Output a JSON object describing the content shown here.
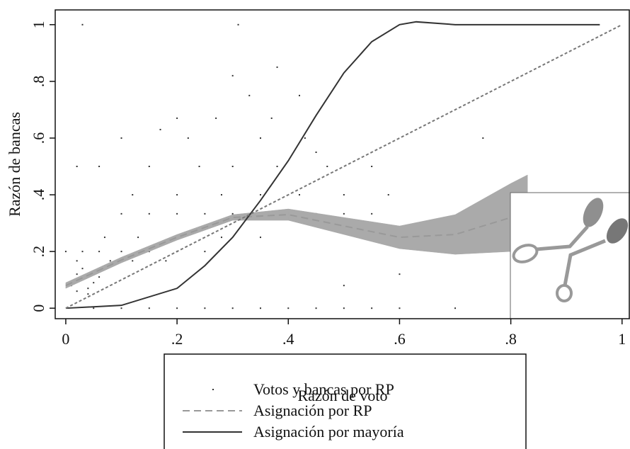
{
  "chart_data": {
    "type": "scatter",
    "x_label": "Razón de voto",
    "y_label": "Razón de bancas",
    "xlim": [
      -0.019,
      1.013
    ],
    "ylim": [
      -0.037,
      1.052
    ],
    "xticks": [
      0,
      {
        "value": 0.2,
        "label": ".2"
      },
      {
        "value": 0.4,
        "label": ".4"
      },
      {
        "value": 0.6,
        "label": ".6"
      },
      {
        "value": 0.8,
        "label": ".8"
      },
      1
    ],
    "yticks": [
      0,
      {
        "value": 0.2,
        "label": ".2"
      },
      {
        "value": 0.4,
        "label": ".4"
      },
      {
        "value": 0.6,
        "label": ".6"
      },
      {
        "value": 0.8,
        "label": ".8"
      },
      1
    ],
    "legend": "bottom",
    "series": [
      {
        "name": "Votos y bancas por RP",
        "type": "scatter",
        "color": "#333333",
        "x": [
          0.05,
          0.1,
          0.15,
          0.2,
          0.25,
          0.3,
          0.35,
          0.4,
          0.45,
          0.5,
          0.55,
          0.6,
          0.7,
          0.8,
          0.01,
          0.02,
          0.03,
          0.04,
          0.05,
          0.02,
          0.04,
          0.06,
          0.03,
          0.0,
          0.03,
          0.06,
          0.1,
          0.15,
          0.2,
          0.25,
          0.02,
          0.08,
          0.12,
          0.18,
          0.07,
          0.13,
          0.2,
          0.28,
          0.35,
          0.1,
          0.15,
          0.2,
          0.25,
          0.3,
          0.4,
          0.45,
          0.5,
          0.55,
          0.12,
          0.2,
          0.28,
          0.35,
          0.42,
          0.5,
          0.58,
          0.02,
          0.06,
          0.15,
          0.24,
          0.3,
          0.38,
          0.47,
          0.55,
          0.1,
          0.22,
          0.35,
          0.43,
          0.2,
          0.27,
          0.37,
          0.33,
          0.42,
          0.03,
          0.31,
          0.17,
          0.3,
          0.38,
          0.45,
          0.6,
          0.5,
          0.75
        ],
        "values": [
          0,
          0,
          0,
          0,
          0,
          0,
          0,
          0,
          0,
          0,
          0,
          0,
          0,
          0,
          0.08,
          0.06,
          0.1,
          0.07,
          0.09,
          0.12,
          0.05,
          0.11,
          0.14,
          0.2,
          0.2,
          0.2,
          0.2,
          0.2,
          0.2,
          0.2,
          0.167,
          0.167,
          0.167,
          0.167,
          0.25,
          0.25,
          0.25,
          0.25,
          0.25,
          0.333,
          0.333,
          0.333,
          0.333,
          0.333,
          0.333,
          0.333,
          0.333,
          0.333,
          0.4,
          0.4,
          0.4,
          0.4,
          0.4,
          0.4,
          0.4,
          0.5,
          0.5,
          0.5,
          0.5,
          0.5,
          0.5,
          0.5,
          0.5,
          0.6,
          0.6,
          0.6,
          0.6,
          0.67,
          0.67,
          0.67,
          0.75,
          0.75,
          1,
          1,
          0.63,
          0.82,
          0.85,
          0.55,
          0.12,
          0.08,
          0.6
        ]
      },
      {
        "name": "Asignación por RP",
        "type": "line",
        "color": "#999999",
        "dash": "10 6",
        "band_color": "#aaaaaa",
        "x": [
          0,
          0.1,
          0.2,
          0.3,
          0.4,
          0.5,
          0.6,
          0.7,
          0.8,
          0.83
        ],
        "values": [
          0.08,
          0.17,
          0.25,
          0.32,
          0.33,
          0.29,
          0.25,
          0.26,
          0.32,
          0.34
        ],
        "lower": [
          0.07,
          0.16,
          0.24,
          0.31,
          0.31,
          0.26,
          0.21,
          0.19,
          0.2,
          0.22
        ],
        "upper": [
          0.09,
          0.18,
          0.26,
          0.33,
          0.35,
          0.32,
          0.29,
          0.33,
          0.44,
          0.47
        ]
      },
      {
        "name": "Asignación por mayoría",
        "type": "line",
        "color": "#333333",
        "x": [
          0,
          0.1,
          0.2,
          0.25,
          0.3,
          0.35,
          0.4,
          0.45,
          0.5,
          0.55,
          0.6,
          0.63,
          0.7,
          0.8,
          0.96
        ],
        "values": [
          0,
          0.01,
          0.07,
          0.15,
          0.25,
          0.38,
          0.52,
          0.68,
          0.83,
          0.94,
          1.0,
          1.01,
          1.0,
          1.0,
          1.0
        ]
      },
      {
        "type": "line",
        "color": "#777777",
        "dash": "4 3",
        "x": [
          0,
          1
        ],
        "values": [
          0,
          1
        ]
      }
    ]
  }
}
